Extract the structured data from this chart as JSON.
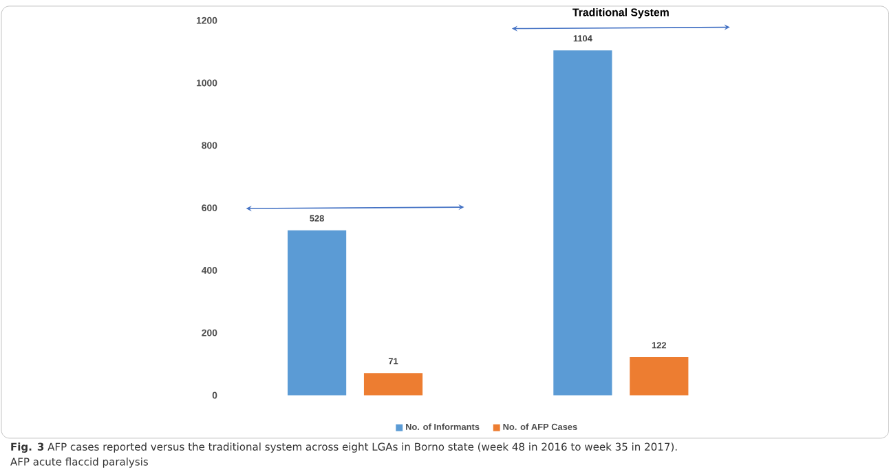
{
  "chart_data": {
    "type": "bar",
    "categories": [
      null,
      "Traditional System"
    ],
    "series": [
      {
        "name": "No. of Informants",
        "color": "#5b9bd5",
        "values": [
          528,
          1104
        ]
      },
      {
        "name": "No. of AFP Cases",
        "color": "#ed7d31",
        "values": [
          71,
          122
        ]
      }
    ],
    "ylim": [
      0,
      1200
    ],
    "yticks": [
      0,
      200,
      400,
      600,
      800,
      1000,
      1200
    ],
    "grid": false,
    "legend": "bottom",
    "data_labels": true,
    "annotations": [
      "**Fig. 3** AFP cases reported versus the traditional system across eight LGAs in Borno state (week 48 in 2016 to week 35 in 2017).",
      "AFP acute flaccid paralysis"
    ]
  }
}
